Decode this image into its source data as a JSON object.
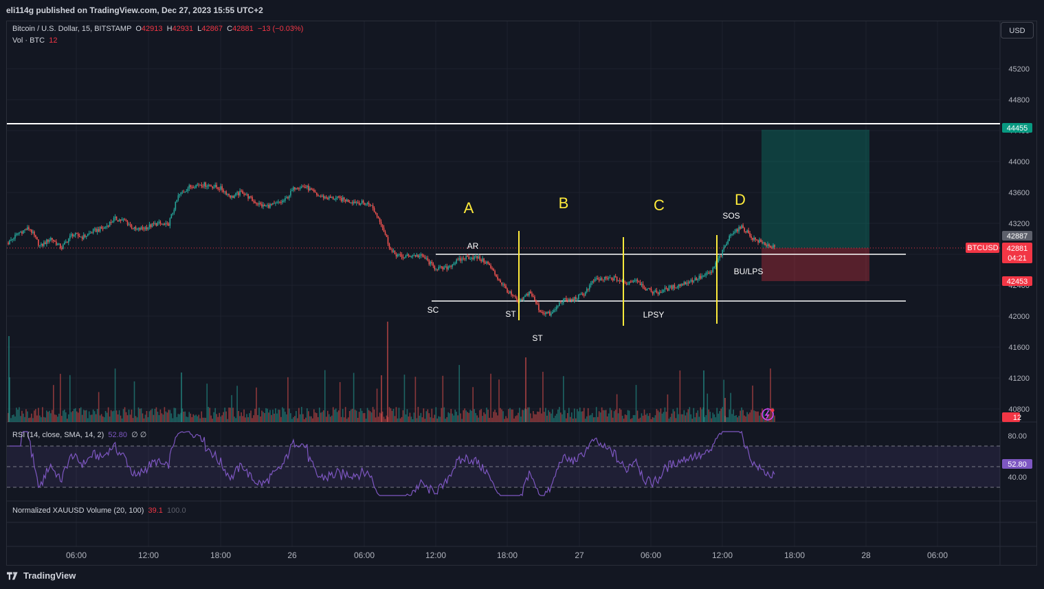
{
  "header": {
    "published": "eli114g published on TradingView.com, Dec 27, 2023 15:55 UTC+2"
  },
  "legend": {
    "symbol": "Bitcoin / U.S. Dollar, 15, BITSTAMP",
    "o_label": "O",
    "o_value": "42913",
    "h_label": "H",
    "h_value": "42931",
    "l_label": "L",
    "l_value": "42867",
    "c_label": "C",
    "c_value": "42881",
    "change": "−13 (−0.03%)",
    "vol_label": "Vol · BTC",
    "vol_value": "12",
    "rsi_label": "RSI (14, close, SMA, 14, 2)",
    "rsi_value": "52.80",
    "rsi_extra": "∅ ∅",
    "norm_label": "Normalized XAUUSD Volume (20, 100)",
    "norm_value1": "39.1",
    "norm_value2": "100.0"
  },
  "toolbar": {
    "currency": "USD"
  },
  "footer": {
    "brand": "TradingView"
  },
  "colors": {
    "bg": "#131722",
    "up": "#26a69a",
    "down": "#ef5350",
    "grid": "#1e222d",
    "yellow": "#ffeb3b",
    "white": "#ffffff",
    "rsi": "#7e57c2",
    "red_tag": "#f23645",
    "green_tag": "#089981"
  },
  "chart_data": {
    "type": "candlestick",
    "symbol": "BTCUSD",
    "interval": "15",
    "price_axis": {
      "ticks": [
        "45200",
        "44800",
        "44400",
        "44000",
        "43600",
        "43200",
        "42800",
        "42400",
        "42000",
        "41600",
        "41200",
        "40800"
      ]
    },
    "time_axis": {
      "ticks": [
        "06:00",
        "12:00",
        "18:00",
        "26",
        "06:00",
        "12:00",
        "18:00",
        "27",
        "06:00",
        "12:00",
        "18:00",
        "28",
        "06:00"
      ]
    },
    "price_tags": [
      {
        "label": "44455",
        "value": 44455,
        "color": "#089981"
      },
      {
        "label": "42887",
        "value": 42887,
        "color": "#5d606b"
      },
      {
        "label": "42881",
        "value": 42881,
        "color": "#f23645",
        "sub": "04:21",
        "symbol": "BTCUSD"
      },
      {
        "label": "42453",
        "value": 42453,
        "color": "#f23645"
      },
      {
        "label": "12",
        "value": 12,
        "color": "#f23645"
      }
    ],
    "horizontal_lines": [
      {
        "value": 44455,
        "name": "resistance"
      },
      {
        "value": 42780,
        "name": "range-top"
      },
      {
        "value": 42180,
        "name": "range-bottom"
      }
    ],
    "phase_labels": [
      "A",
      "B",
      "C",
      "D"
    ],
    "event_labels": [
      "AR",
      "SC",
      "ST",
      "ST",
      "LPSY",
      "SOS",
      "BU/LPS"
    ],
    "position": {
      "entry": 42881,
      "target": 44455,
      "stop": 42453
    },
    "rsi": {
      "value": 52.8,
      "levels": [
        "80.00",
        "40.00"
      ],
      "upper": 70,
      "middle": 50,
      "lower": 30
    },
    "candles_anchor": [
      [
        0,
        42950
      ],
      [
        8,
        43080
      ],
      [
        16,
        43140
      ],
      [
        24,
        42900
      ],
      [
        32,
        43010
      ],
      [
        40,
        42880
      ],
      [
        48,
        43060
      ],
      [
        56,
        43020
      ],
      [
        64,
        43100
      ],
      [
        72,
        43140
      ],
      [
        80,
        43260
      ],
      [
        88,
        43230
      ],
      [
        96,
        43110
      ],
      [
        104,
        43150
      ],
      [
        112,
        43200
      ],
      [
        120,
        43170
      ],
      [
        128,
        43560
      ],
      [
        136,
        43670
      ],
      [
        144,
        43710
      ],
      [
        152,
        43690
      ],
      [
        160,
        43650
      ],
      [
        168,
        43540
      ],
      [
        176,
        43610
      ],
      [
        184,
        43490
      ],
      [
        192,
        43420
      ],
      [
        200,
        43440
      ],
      [
        208,
        43500
      ],
      [
        216,
        43680
      ],
      [
        224,
        43670
      ],
      [
        232,
        43560
      ],
      [
        240,
        43530
      ],
      [
        248,
        43520
      ],
      [
        256,
        43490
      ],
      [
        264,
        43470
      ],
      [
        272,
        43450
      ],
      [
        280,
        43220
      ],
      [
        288,
        42830
      ],
      [
        296,
        42760
      ],
      [
        304,
        42790
      ],
      [
        312,
        42770
      ],
      [
        320,
        42630
      ],
      [
        328,
        42610
      ],
      [
        336,
        42700
      ],
      [
        344,
        42760
      ],
      [
        352,
        42760
      ],
      [
        360,
        42690
      ],
      [
        368,
        42490
      ],
      [
        376,
        42310
      ],
      [
        384,
        42170
      ],
      [
        392,
        42320
      ],
      [
        400,
        42060
      ],
      [
        408,
        42020
      ],
      [
        416,
        42200
      ],
      [
        424,
        42210
      ],
      [
        432,
        42280
      ],
      [
        440,
        42460
      ],
      [
        448,
        42480
      ],
      [
        456,
        42490
      ],
      [
        464,
        42420
      ],
      [
        472,
        42480
      ],
      [
        480,
        42340
      ],
      [
        488,
        42300
      ],
      [
        496,
        42360
      ],
      [
        504,
        42400
      ],
      [
        512,
        42450
      ],
      [
        520,
        42500
      ],
      [
        528,
        42560
      ],
      [
        536,
        42800
      ],
      [
        544,
        43090
      ],
      [
        552,
        43150
      ],
      [
        560,
        43000
      ],
      [
        568,
        42940
      ],
      [
        576,
        42881
      ]
    ]
  }
}
